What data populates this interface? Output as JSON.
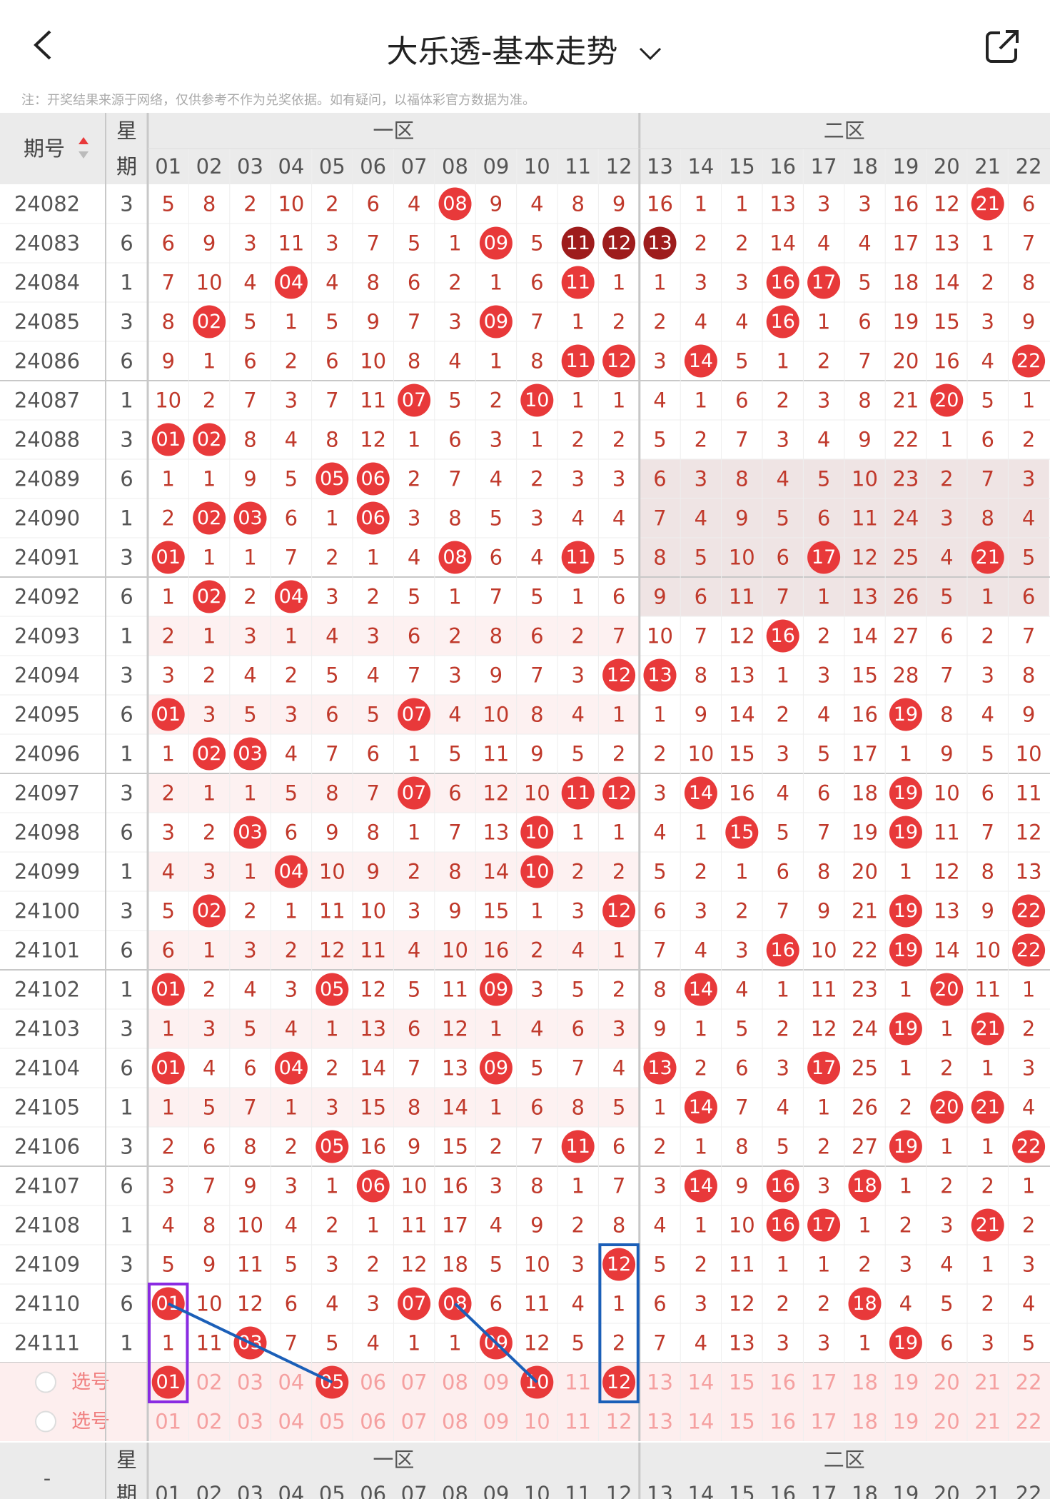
{
  "header": {
    "title": "大乐透-基本走势",
    "note": "注：开奖结果来源于网络，仅供参考不作为兑奖依据。如有疑问，以福体彩官方数据为准。"
  },
  "table_header": {
    "period_label": "期号",
    "weekday_label_top": "星",
    "weekday_label_bottom": "期",
    "zone1_label": "一区",
    "zone2_label": "二区",
    "columns": [
      "01",
      "02",
      "03",
      "04",
      "05",
      "06",
      "07",
      "08",
      "09",
      "10",
      "11",
      "12",
      "13",
      "14",
      "15",
      "16",
      "17",
      "18",
      "19",
      "20",
      "21",
      "22"
    ]
  },
  "rows": [
    {
      "period": "24082",
      "weekday": "3",
      "values": [
        "5",
        "8",
        "2",
        "10",
        "2",
        "6",
        "4",
        "08",
        "9",
        "4",
        "8",
        "9",
        "16",
        "1",
        "1",
        "13",
        "3",
        "3",
        "16",
        "12",
        "21",
        "6"
      ],
      "hits": [
        7,
        20
      ]
    },
    {
      "period": "24083",
      "weekday": "6",
      "values": [
        "6",
        "9",
        "3",
        "11",
        "3",
        "7",
        "5",
        "1",
        "09",
        "5",
        "11",
        "12",
        "13",
        "2",
        "2",
        "14",
        "4",
        "4",
        "17",
        "13",
        "1",
        "7"
      ],
      "hits": [
        8,
        10,
        11,
        12
      ],
      "dark": [
        10,
        11,
        12
      ]
    },
    {
      "period": "24084",
      "weekday": "1",
      "values": [
        "7",
        "10",
        "4",
        "04",
        "4",
        "8",
        "6",
        "2",
        "1",
        "6",
        "11",
        "1",
        "1",
        "3",
        "3",
        "16",
        "17",
        "5",
        "18",
        "14",
        "2",
        "8"
      ],
      "hits": [
        3,
        10,
        15,
        16
      ]
    },
    {
      "period": "24085",
      "weekday": "3",
      "values": [
        "8",
        "02",
        "5",
        "1",
        "5",
        "9",
        "7",
        "3",
        "09",
        "7",
        "1",
        "2",
        "2",
        "4",
        "4",
        "16",
        "1",
        "6",
        "19",
        "15",
        "3",
        "9"
      ],
      "hits": [
        1,
        8,
        15
      ]
    },
    {
      "period": "24086",
      "weekday": "6",
      "values": [
        "9",
        "1",
        "6",
        "2",
        "6",
        "10",
        "8",
        "4",
        "1",
        "8",
        "11",
        "12",
        "3",
        "14",
        "5",
        "1",
        "2",
        "7",
        "20",
        "16",
        "4",
        "22"
      ],
      "hits": [
        10,
        11,
        13,
        21
      ]
    },
    {
      "period": "24087",
      "weekday": "1",
      "values": [
        "10",
        "2",
        "7",
        "3",
        "7",
        "11",
        "07",
        "5",
        "2",
        "10",
        "1",
        "1",
        "4",
        "1",
        "6",
        "2",
        "3",
        "8",
        "21",
        "20",
        "5",
        "1"
      ],
      "hits": [
        6,
        9,
        19
      ]
    },
    {
      "period": "24088",
      "weekday": "3",
      "values": [
        "01",
        "02",
        "8",
        "4",
        "8",
        "12",
        "1",
        "6",
        "3",
        "1",
        "2",
        "2",
        "5",
        "2",
        "7",
        "3",
        "4",
        "9",
        "22",
        "1",
        "6",
        "2"
      ],
      "hits": [
        0,
        1
      ]
    },
    {
      "period": "24089",
      "weekday": "6",
      "values": [
        "1",
        "1",
        "9",
        "5",
        "05",
        "06",
        "2",
        "7",
        "4",
        "2",
        "3",
        "3",
        "6",
        "3",
        "8",
        "4",
        "5",
        "10",
        "23",
        "2",
        "7",
        "3"
      ],
      "hits": [
        4,
        5
      ]
    },
    {
      "period": "24090",
      "weekday": "1",
      "values": [
        "2",
        "02",
        "03",
        "6",
        "1",
        "06",
        "3",
        "8",
        "5",
        "3",
        "4",
        "4",
        "7",
        "4",
        "9",
        "5",
        "6",
        "11",
        "24",
        "3",
        "8",
        "4"
      ],
      "hits": [
        1,
        2,
        5
      ]
    },
    {
      "period": "24091",
      "weekday": "3",
      "values": [
        "01",
        "1",
        "1",
        "7",
        "2",
        "1",
        "4",
        "08",
        "6",
        "4",
        "11",
        "5",
        "8",
        "5",
        "10",
        "6",
        "17",
        "12",
        "25",
        "4",
        "21",
        "5"
      ],
      "hits": [
        0,
        7,
        10,
        16,
        20
      ]
    },
    {
      "period": "24092",
      "weekday": "6",
      "values": [
        "1",
        "02",
        "2",
        "04",
        "3",
        "2",
        "5",
        "1",
        "7",
        "5",
        "1",
        "6",
        "9",
        "6",
        "11",
        "7",
        "1",
        "13",
        "26",
        "5",
        "1",
        "6"
      ],
      "hits": [
        1,
        3
      ]
    },
    {
      "period": "24093",
      "weekday": "1",
      "values": [
        "2",
        "1",
        "3",
        "1",
        "4",
        "3",
        "6",
        "2",
        "8",
        "6",
        "2",
        "7",
        "10",
        "7",
        "12",
        "16",
        "2",
        "14",
        "27",
        "6",
        "2",
        "7"
      ],
      "hits": [
        15
      ]
    },
    {
      "period": "24094",
      "weekday": "3",
      "values": [
        "3",
        "2",
        "4",
        "2",
        "5",
        "4",
        "7",
        "3",
        "9",
        "7",
        "3",
        "12",
        "13",
        "8",
        "13",
        "1",
        "3",
        "15",
        "28",
        "7",
        "3",
        "8"
      ],
      "hits": [
        11,
        12
      ]
    },
    {
      "period": "24095",
      "weekday": "6",
      "values": [
        "01",
        "3",
        "5",
        "3",
        "6",
        "5",
        "07",
        "4",
        "10",
        "8",
        "4",
        "1",
        "1",
        "9",
        "14",
        "2",
        "4",
        "16",
        "19",
        "8",
        "4",
        "9"
      ],
      "hits": [
        0,
        6,
        18
      ]
    },
    {
      "period": "24096",
      "weekday": "1",
      "values": [
        "1",
        "02",
        "03",
        "4",
        "7",
        "6",
        "1",
        "5",
        "11",
        "9",
        "5",
        "2",
        "2",
        "10",
        "15",
        "3",
        "5",
        "17",
        "1",
        "9",
        "5",
        "10"
      ],
      "hits": [
        1,
        2
      ]
    },
    {
      "period": "24097",
      "weekday": "3",
      "values": [
        "2",
        "1",
        "1",
        "5",
        "8",
        "7",
        "07",
        "6",
        "12",
        "10",
        "11",
        "12",
        "3",
        "14",
        "16",
        "4",
        "6",
        "18",
        "19",
        "10",
        "6",
        "11"
      ],
      "hits": [
        6,
        10,
        11,
        13,
        18
      ]
    },
    {
      "period": "24098",
      "weekday": "6",
      "values": [
        "3",
        "2",
        "03",
        "6",
        "9",
        "8",
        "1",
        "7",
        "13",
        "10",
        "1",
        "1",
        "4",
        "1",
        "15",
        "5",
        "7",
        "19",
        "19",
        "11",
        "7",
        "12"
      ],
      "hits": [
        2,
        9,
        14,
        18
      ]
    },
    {
      "period": "24099",
      "weekday": "1",
      "values": [
        "4",
        "3",
        "1",
        "04",
        "10",
        "9",
        "2",
        "8",
        "14",
        "10",
        "2",
        "2",
        "5",
        "2",
        "1",
        "6",
        "8",
        "20",
        "1",
        "12",
        "8",
        "13"
      ],
      "hits": [
        3,
        9
      ]
    },
    {
      "period": "24100",
      "weekday": "3",
      "values": [
        "5",
        "02",
        "2",
        "1",
        "11",
        "10",
        "3",
        "9",
        "15",
        "1",
        "3",
        "12",
        "6",
        "3",
        "2",
        "7",
        "9",
        "21",
        "19",
        "13",
        "9",
        "22"
      ],
      "hits": [
        1,
        11,
        18,
        21
      ]
    },
    {
      "period": "24101",
      "weekday": "6",
      "values": [
        "6",
        "1",
        "3",
        "2",
        "12",
        "11",
        "4",
        "10",
        "16",
        "2",
        "4",
        "1",
        "7",
        "4",
        "3",
        "16",
        "10",
        "22",
        "19",
        "14",
        "10",
        "22"
      ],
      "hits": [
        15,
        18,
        21
      ]
    },
    {
      "period": "24102",
      "weekday": "1",
      "values": [
        "01",
        "2",
        "4",
        "3",
        "05",
        "12",
        "5",
        "11",
        "09",
        "3",
        "5",
        "2",
        "8",
        "14",
        "4",
        "1",
        "11",
        "23",
        "1",
        "20",
        "11",
        "1"
      ],
      "hits": [
        0,
        4,
        8,
        13,
        19
      ]
    },
    {
      "period": "24103",
      "weekday": "3",
      "values": [
        "1",
        "3",
        "5",
        "4",
        "1",
        "13",
        "6",
        "12",
        "1",
        "4",
        "6",
        "3",
        "9",
        "1",
        "5",
        "2",
        "12",
        "24",
        "19",
        "1",
        "21",
        "2"
      ],
      "hits": [
        18,
        20
      ]
    },
    {
      "period": "24104",
      "weekday": "6",
      "values": [
        "01",
        "4",
        "6",
        "04",
        "2",
        "14",
        "7",
        "13",
        "09",
        "5",
        "7",
        "4",
        "13",
        "2",
        "6",
        "3",
        "17",
        "25",
        "1",
        "2",
        "1",
        "3"
      ],
      "hits": [
        0,
        3,
        8,
        12,
        16
      ]
    },
    {
      "period": "24105",
      "weekday": "1",
      "values": [
        "1",
        "5",
        "7",
        "1",
        "3",
        "15",
        "8",
        "14",
        "1",
        "6",
        "8",
        "5",
        "1",
        "14",
        "7",
        "4",
        "1",
        "26",
        "2",
        "20",
        "21",
        "4"
      ],
      "hits": [
        13,
        19,
        20
      ]
    },
    {
      "period": "24106",
      "weekday": "3",
      "values": [
        "2",
        "6",
        "8",
        "2",
        "05",
        "16",
        "9",
        "15",
        "2",
        "7",
        "11",
        "6",
        "2",
        "1",
        "8",
        "5",
        "2",
        "27",
        "19",
        "1",
        "1",
        "22"
      ],
      "hits": [
        4,
        10,
        18,
        21
      ]
    },
    {
      "period": "24107",
      "weekday": "6",
      "values": [
        "3",
        "7",
        "9",
        "3",
        "1",
        "06",
        "10",
        "16",
        "3",
        "8",
        "1",
        "7",
        "3",
        "14",
        "9",
        "16",
        "3",
        "18",
        "1",
        "2",
        "2",
        "1"
      ],
      "hits": [
        5,
        13,
        15,
        17
      ]
    },
    {
      "period": "24108",
      "weekday": "1",
      "values": [
        "4",
        "8",
        "10",
        "4",
        "2",
        "1",
        "11",
        "17",
        "4",
        "9",
        "2",
        "8",
        "4",
        "1",
        "10",
        "16",
        "17",
        "1",
        "2",
        "3",
        "21",
        "2"
      ],
      "hits": [
        15,
        16,
        20
      ]
    },
    {
      "period": "24109",
      "weekday": "3",
      "values": [
        "5",
        "9",
        "11",
        "5",
        "3",
        "2",
        "12",
        "18",
        "5",
        "10",
        "3",
        "12",
        "5",
        "2",
        "11",
        "1",
        "1",
        "2",
        "3",
        "4",
        "1",
        "3"
      ],
      "hits": [
        11
      ]
    },
    {
      "period": "24110",
      "weekday": "6",
      "values": [
        "01",
        "10",
        "12",
        "6",
        "4",
        "3",
        "07",
        "08",
        "6",
        "11",
        "4",
        "1",
        "6",
        "3",
        "12",
        "2",
        "2",
        "18",
        "4",
        "5",
        "2",
        "4"
      ],
      "hits": [
        0,
        6,
        7,
        17
      ]
    },
    {
      "period": "24111",
      "weekday": "1",
      "values": [
        "1",
        "11",
        "03",
        "7",
        "5",
        "4",
        "1",
        "1",
        "09",
        "12",
        "5",
        "2",
        "7",
        "4",
        "13",
        "3",
        "3",
        "1",
        "19",
        "6",
        "3",
        "5"
      ],
      "hits": [
        2,
        8,
        18
      ]
    }
  ],
  "pick_rows": [
    {
      "label": "选号",
      "selected": [
        0,
        4,
        9,
        11
      ]
    },
    {
      "label": "选号",
      "selected": []
    }
  ],
  "footer": {
    "period_label": "-",
    "weekday_label_top": "星",
    "weekday_label_bottom": "期",
    "zone1_label": "一区",
    "zone2_label": "二区"
  },
  "colors": {
    "ball": "#e8393a",
    "ball_dark": "#9e1c1c",
    "number": "#c0392b",
    "accent_purple": "#8a2be2",
    "accent_blue": "#1b5fb8"
  }
}
